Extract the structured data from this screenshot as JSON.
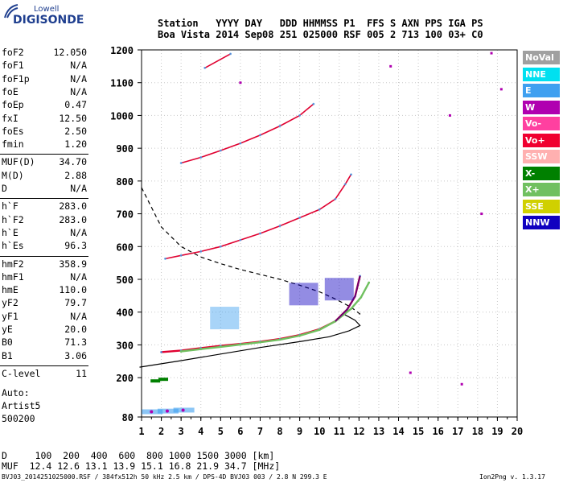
{
  "logo": {
    "line1": "Lowell",
    "line2": "DIGISONDE"
  },
  "header": {
    "labels": "Station   YYYY DAY   DDD HHMMSS P1  FFS S AXN PPS IGA PS",
    "values": "Boa Vista 2014 Sep08 251 025000 RSF 005 2 713 100 03+ C0"
  },
  "params_group1": [
    {
      "name": "foF2",
      "value": "12.050"
    },
    {
      "name": "foF1",
      "value": "N/A"
    },
    {
      "name": "foF1p",
      "value": "N/A"
    },
    {
      "name": "foE",
      "value": "N/A"
    },
    {
      "name": "foEp",
      "value": "0.47"
    },
    {
      "name": "fxI",
      "value": "12.50"
    },
    {
      "name": "foEs",
      "value": "2.50"
    },
    {
      "name": "fmin",
      "value": "1.20"
    }
  ],
  "params_group2": [
    {
      "name": "MUF(D)",
      "value": "34.70"
    },
    {
      "name": "M(D)",
      "value": "2.88"
    },
    {
      "name": "D",
      "value": "N/A"
    }
  ],
  "params_group3": [
    {
      "name": "h`F",
      "value": "283.0"
    },
    {
      "name": "h`F2",
      "value": "283.0"
    },
    {
      "name": "h`E",
      "value": "N/A"
    },
    {
      "name": "h`Es",
      "value": "96.3"
    }
  ],
  "params_group4": [
    {
      "name": "hmF2",
      "value": "358.9"
    },
    {
      "name": "hmF1",
      "value": "N/A"
    },
    {
      "name": "hmE",
      "value": "110.0"
    },
    {
      "name": "yF2",
      "value": "79.7"
    },
    {
      "name": "yF1",
      "value": "N/A"
    },
    {
      "name": "yE",
      "value": "20.0"
    },
    {
      "name": "B0",
      "value": "71.3"
    },
    {
      "name": "B1",
      "value": "3.06"
    }
  ],
  "params_group5": [
    {
      "name": "C-level",
      "value": "11"
    }
  ],
  "auto": {
    "line1": "Auto:",
    "line2": "Artist5",
    "line3": "500200"
  },
  "legend": [
    {
      "label": "NoVal",
      "color": "#a0a0a0"
    },
    {
      "label": "NNE",
      "color": "#00e0f0"
    },
    {
      "label": "E",
      "color": "#3fa0f0"
    },
    {
      "label": "W",
      "color": "#b000b0"
    },
    {
      "label": "Vo-",
      "color": "#ff40a0"
    },
    {
      "label": "Vo+",
      "color": "#f00030"
    },
    {
      "label": "SSW",
      "color": "#ffb0b0"
    },
    {
      "label": "X-",
      "color": "#008000"
    },
    {
      "label": "X+",
      "color": "#70c060"
    },
    {
      "label": "SSE",
      "color": "#d0d000"
    },
    {
      "label": "NNW",
      "color": "#1000c0"
    }
  ],
  "bottom": {
    "d_row": "D     100  200  400  600  800 1000 1500 3000 [km]",
    "muf_row": "MUF  12.4 12.6 13.1 13.9 15.1 16.8 21.9 34.7 [MHz]",
    "footer_left": "BVJ03_2014251025000.RSF / 384fx512h 50 kHz 2.5 km / DPS-4D BVJ03 003 / 2.8 N 299.3 E",
    "footer_right": "Ion2Png v. 1.3.17"
  },
  "chart_data": {
    "type": "scatter",
    "xlim": [
      1,
      20
    ],
    "ylim": [
      80,
      1200
    ],
    "x_ticks": [
      1,
      2,
      3,
      4,
      5,
      6,
      7,
      8,
      9,
      10,
      11,
      12,
      13,
      14,
      15,
      16,
      17,
      18,
      19,
      20
    ],
    "y_ticks": [
      80,
      200,
      300,
      400,
      500,
      600,
      700,
      800,
      900,
      1000,
      1100,
      1200
    ],
    "grid": true,
    "traces": [
      {
        "name": "o-trace F2",
        "color": "#e00030",
        "points": [
          [
            2.0,
            278
          ],
          [
            3,
            283
          ],
          [
            4,
            290
          ],
          [
            5,
            297
          ],
          [
            6,
            303
          ],
          [
            7,
            310
          ],
          [
            8,
            318
          ],
          [
            9,
            330
          ],
          [
            10,
            348
          ],
          [
            10.8,
            372
          ],
          [
            11.4,
            408
          ],
          [
            11.8,
            448
          ],
          [
            12.05,
            510
          ]
        ]
      },
      {
        "name": "x-trace F2",
        "color": "#70c060",
        "points": [
          [
            3,
            280
          ],
          [
            4,
            287
          ],
          [
            5,
            294
          ],
          [
            6,
            301
          ],
          [
            7,
            308
          ],
          [
            8,
            316
          ],
          [
            9,
            328
          ],
          [
            10,
            346
          ],
          [
            10.8,
            372
          ],
          [
            11.6,
            410
          ],
          [
            12.1,
            445
          ],
          [
            12.5,
            490
          ]
        ]
      },
      {
        "name": "second hop",
        "color": "#e00030",
        "points": [
          [
            2.2,
            563
          ],
          [
            3,
            573
          ],
          [
            4,
            585
          ],
          [
            5,
            600
          ],
          [
            6,
            620
          ],
          [
            7,
            640
          ],
          [
            8,
            663
          ],
          [
            9,
            688
          ],
          [
            10,
            713
          ],
          [
            10.8,
            745
          ],
          [
            11.3,
            790
          ],
          [
            11.6,
            820
          ]
        ]
      },
      {
        "name": "third hop",
        "color": "#e00030",
        "points": [
          [
            3,
            855
          ],
          [
            4,
            872
          ],
          [
            5,
            893
          ],
          [
            6,
            915
          ],
          [
            7,
            940
          ],
          [
            8,
            968
          ],
          [
            9,
            1000
          ],
          [
            9.7,
            1035
          ]
        ]
      },
      {
        "name": "fourth hop",
        "color": "#e00030",
        "points": [
          [
            4.2,
            1145
          ],
          [
            5.5,
            1188
          ]
        ]
      }
    ],
    "profile": [
      [
        0.9,
        232
      ],
      [
        3,
        252
      ],
      [
        5,
        272
      ],
      [
        7,
        292
      ],
      [
        9,
        310
      ],
      [
        10.5,
        325
      ],
      [
        11.5,
        343
      ],
      [
        12.05,
        358.9
      ],
      [
        11.8,
        375
      ],
      [
        11.2,
        395
      ]
    ],
    "muf_curve": [
      [
        1,
        780
      ],
      [
        2,
        660
      ],
      [
        3,
        600
      ],
      [
        4,
        568
      ],
      [
        5,
        548
      ],
      [
        6,
        530
      ],
      [
        7,
        515
      ],
      [
        8,
        500
      ],
      [
        9,
        482
      ],
      [
        10,
        462
      ],
      [
        10.8,
        440
      ],
      [
        11.6,
        415
      ],
      [
        12.1,
        392
      ]
    ],
    "es_trace": [
      [
        1.5,
        96
      ],
      [
        2.3,
        98
      ],
      [
        3.1,
        101
      ]
    ],
    "es_sporadic": [
      [
        1.7,
        190
      ],
      [
        2.1,
        195
      ]
    ],
    "spread_f": [
      [
        5.2,
        382
      ],
      [
        9.2,
        455
      ],
      [
        11.0,
        470
      ]
    ],
    "scattered_echoes": [
      [
        6.0,
        1100
      ],
      [
        13.6,
        1150
      ],
      [
        16.6,
        1000
      ],
      [
        18.2,
        700
      ],
      [
        18.7,
        1190
      ],
      [
        19.2,
        1080
      ],
      [
        14.6,
        215
      ],
      [
        17.2,
        180
      ]
    ]
  }
}
